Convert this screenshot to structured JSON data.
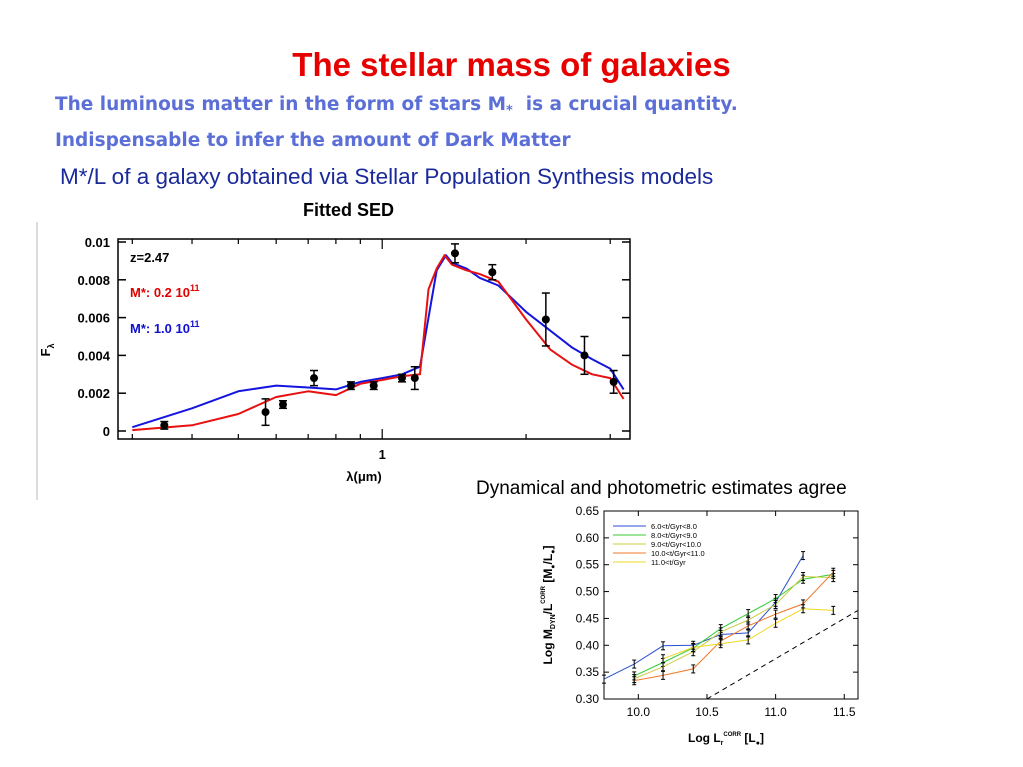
{
  "slide": {
    "title": "The stellar mass of galaxies",
    "line1": "The luminous matter in the form of stars M",
    "line1_sub": "*",
    "line1_tail": "  is a crucial quantity.",
    "line2": "Indispensable  to infer the amount of Dark Matter",
    "line3": "M*/L of a galaxy obtained via Stellar Population Synthesis models",
    "sed_caption": "Fitted SED",
    "dyn_caption": "Dynamical  and photometric estimates agree"
  },
  "chart_data": [
    {
      "type": "line",
      "xlabel": "λ(μm)",
      "ylabel": "F",
      "ylabel_sub": "λ",
      "x_tick_labels": [
        "1"
      ],
      "ylim": [
        0,
        0.01
      ],
      "y_ticks": [
        0,
        0.002,
        0.004,
        0.006,
        0.008,
        0.01
      ],
      "y_tick_labels": [
        "0",
        "0.002",
        "0.004",
        "0.006",
        "0.008",
        "0.01"
      ],
      "annotations": [
        {
          "text": "z=2.47",
          "color": "#000000"
        },
        {
          "text": "M*:  0.2  10",
          "sup": "11",
          "color": "#e00000"
        },
        {
          "text": "M*:  1.0  10",
          "sup": "11",
          "color": "#1010d0"
        }
      ],
      "series": [
        {
          "color": "#1515e0",
          "x": [
            0.3,
            0.4,
            0.5,
            0.6,
            0.7,
            0.8,
            0.9,
            1.0,
            1.1,
            1.2,
            1.3,
            1.36,
            1.4,
            1.5,
            1.6,
            1.75,
            2.0,
            2.25,
            2.5,
            2.75,
            3.0,
            3.2
          ],
          "y": [
            0.0002,
            0.0012,
            0.0021,
            0.0024,
            0.0023,
            0.0022,
            0.0026,
            0.0028,
            0.003,
            0.0034,
            0.0085,
            0.0093,
            0.0089,
            0.0086,
            0.0081,
            0.0077,
            0.0063,
            0.0053,
            0.0044,
            0.0038,
            0.0033,
            0.0022
          ]
        },
        {
          "color": "#e81010",
          "x": [
            0.3,
            0.4,
            0.5,
            0.6,
            0.7,
            0.8,
            0.9,
            1.0,
            1.1,
            1.2,
            1.25,
            1.3,
            1.35,
            1.4,
            1.5,
            1.6,
            1.75,
            2.0,
            2.25,
            2.5,
            2.75,
            3.0,
            3.2
          ],
          "y": [
            5e-05,
            0.0003,
            0.0009,
            0.0018,
            0.0021,
            0.0019,
            0.0025,
            0.0027,
            0.0029,
            0.003,
            0.0075,
            0.0086,
            0.0093,
            0.0088,
            0.0085,
            0.0083,
            0.0079,
            0.0059,
            0.0043,
            0.0035,
            0.003,
            0.0028,
            0.0017
          ]
        }
      ],
      "observations": [
        {
          "x": 0.35,
          "y": 0.0003,
          "e": 0.0002
        },
        {
          "x": 0.57,
          "y": 0.001,
          "e": 0.0007
        },
        {
          "x": 0.62,
          "y": 0.0014,
          "e": 0.0002
        },
        {
          "x": 0.72,
          "y": 0.0028,
          "e": 0.0004
        },
        {
          "x": 0.86,
          "y": 0.0024,
          "e": 0.0002
        },
        {
          "x": 0.96,
          "y": 0.0024,
          "e": 0.0002
        },
        {
          "x": 1.1,
          "y": 0.0028,
          "e": 0.0002
        },
        {
          "x": 1.17,
          "y": 0.0028,
          "e": 0.0006
        },
        {
          "x": 1.42,
          "y": 0.0094,
          "e": 0.0005
        },
        {
          "x": 1.7,
          "y": 0.0084,
          "e": 0.0004
        },
        {
          "x": 2.2,
          "y": 0.0059,
          "e": 0.0014
        },
        {
          "x": 2.65,
          "y": 0.004,
          "e": 0.001
        },
        {
          "x": 3.05,
          "y": 0.0026,
          "e": 0.0006
        }
      ]
    },
    {
      "type": "line",
      "xlabel": "Log  L",
      "xlabel_sub": "r",
      "xlabel_sup": "CORR",
      "xlabel_tail": " [L",
      "ylabel": "Log  M",
      "ylabel_sub": "DYN",
      "ylabel_mid": "/L",
      "ylabel_sup": "CORR",
      "ylabel_tail": " [M",
      "xlim": [
        9.75,
        11.6
      ],
      "ylim": [
        0.3,
        0.65
      ],
      "x_ticks": [
        10.0,
        10.5,
        11.0,
        11.5
      ],
      "x_tick_labels": [
        "10.0",
        "10.5",
        "11.0",
        "11.5"
      ],
      "y_ticks": [
        0.3,
        0.35,
        0.4,
        0.45,
        0.5,
        0.55,
        0.6,
        0.65
      ],
      "y_tick_labels": [
        "0.30",
        "0.35",
        "0.40",
        "0.45",
        "0.50",
        "0.55",
        "0.60",
        "0.65"
      ],
      "series": [
        {
          "name": "6.0<t/Gyr<8.0",
          "color": "#2a4fd0",
          "x": [
            9.75,
            9.97,
            10.18,
            10.4,
            10.6,
            10.8,
            11.0,
            11.2
          ],
          "y": [
            0.337,
            0.365,
            0.399,
            0.4,
            0.42,
            0.423,
            0.48,
            0.567
          ]
        },
        {
          "name": "8.0<t/Gyr<9.0",
          "color": "#33cc33",
          "x": [
            9.97,
            10.18,
            10.4,
            10.6,
            10.8,
            11.0,
            11.2,
            11.42
          ],
          "y": [
            0.343,
            0.368,
            0.395,
            0.431,
            0.459,
            0.487,
            0.523,
            0.532
          ]
        },
        {
          "name": "9.0<t/Gyr<10.0",
          "color": "#cccc44",
          "x": [
            9.97,
            10.18,
            10.4,
            10.6,
            10.8,
            11.0,
            11.2,
            11.42
          ],
          "y": [
            0.338,
            0.36,
            0.388,
            0.425,
            0.447,
            0.476,
            0.528,
            0.526
          ]
        },
        {
          "name": "10.0<t/Gyr<11.0",
          "color": "#f07828",
          "x": [
            9.97,
            10.18,
            10.4,
            10.6,
            10.8,
            11.0,
            11.2,
            11.42
          ],
          "y": [
            0.334,
            0.344,
            0.356,
            0.408,
            0.436,
            0.458,
            0.477,
            0.536
          ]
        },
        {
          "name": "11.0<t/Gyr",
          "color": "#f0d820",
          "x": [
            10.18,
            10.4,
            10.6,
            10.8,
            11.0,
            11.2,
            11.42
          ],
          "y": [
            0.375,
            0.396,
            0.403,
            0.41,
            0.441,
            0.468,
            0.465
          ]
        }
      ],
      "reference_line": {
        "style": "dashed",
        "color": "#000000",
        "x": [
          10.5,
          11.6
        ],
        "y": [
          0.3,
          0.465
        ]
      }
    }
  ]
}
